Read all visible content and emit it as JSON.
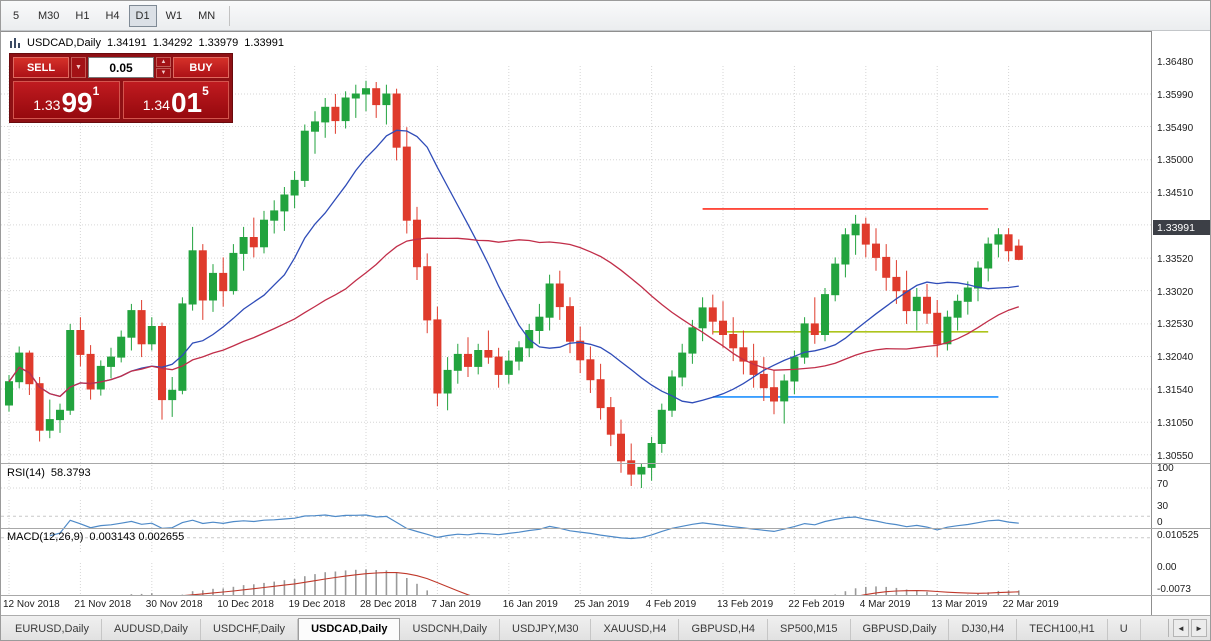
{
  "toolbar": {
    "timeframes": [
      "5",
      "M30",
      "H1",
      "H4",
      "D1",
      "W1",
      "MN"
    ],
    "active": "D1"
  },
  "chart_header": {
    "symbol_label": "USDCAD,Daily",
    "open": "1.34191",
    "high": "1.34292",
    "low": "1.33979",
    "close": "1.33991"
  },
  "trade": {
    "sell_label": "SELL",
    "buy_label": "BUY",
    "volume": "0.05",
    "bid": {
      "prefix": "1.33",
      "pips": "99",
      "pipette": "1"
    },
    "ask": {
      "prefix": "1.34",
      "pips": "01",
      "pipette": "5"
    }
  },
  "icons": {
    "dropdown": "▼",
    "spin_up": "▲",
    "spin_down": "▼",
    "scroll_left": "◄",
    "scroll_right": "►"
  },
  "indicators": {
    "rsi_label": "RSI(14)",
    "rsi_value": "58.3793",
    "macd_label": "MACD(12,26,9)",
    "macd_values": "0.003143 0.002655"
  },
  "tabs": [
    {
      "label": "EURUSD,Daily",
      "active": false
    },
    {
      "label": "AUDUSD,Daily",
      "active": false
    },
    {
      "label": "USDCHF,Daily",
      "active": false
    },
    {
      "label": "USDCAD,Daily",
      "active": true
    },
    {
      "label": "USDCNH,Daily",
      "active": false
    },
    {
      "label": "USDJPY,M30",
      "active": false
    },
    {
      "label": "XAUUSD,H4",
      "active": false
    },
    {
      "label": "GBPUSD,H4",
      "active": false
    },
    {
      "label": "SP500,M15",
      "active": false
    },
    {
      "label": "GBPUSD,Daily",
      "active": false
    },
    {
      "label": "DJ30,H4",
      "active": false
    },
    {
      "label": "TECH100,H1",
      "active": false
    },
    {
      "label": "U",
      "active": false
    }
  ],
  "chart_data": {
    "type": "candlestick",
    "symbol": "USDCAD",
    "timeframe": "Daily",
    "current_price": "1.33991",
    "up_color": "#22A33E",
    "down_color": "#DF3B2C",
    "price_axis_labels": [
      "1.36480",
      "1.35990",
      "1.35490",
      "1.35000",
      "1.34510",
      "1.34010",
      "1.33520",
      "1.33020",
      "1.32530",
      "1.32040",
      "1.31540",
      "1.31050",
      "1.30550"
    ],
    "date_labels": [
      "12 Nov 2018",
      "21 Nov 2018",
      "30 Nov 2018",
      "10 Dec 2018",
      "19 Dec 2018",
      "28 Dec 2018",
      "7 Jan 2019",
      "16 Jan 2019",
      "25 Jan 2019",
      "4 Feb 2019",
      "13 Feb 2019",
      "22 Feb 2019",
      "4 Mar 2019",
      "13 Mar 2019",
      "22 Mar 2019"
    ],
    "date_label_indices": [
      0,
      7,
      14,
      21,
      28,
      35,
      42,
      49,
      56,
      63,
      70,
      77,
      84,
      91,
      98
    ],
    "ma_fast": {
      "period": 13,
      "color": "#2F4CB8"
    },
    "ma_slow": {
      "period": 34,
      "color": "#C12E49"
    },
    "trend_lines": [
      {
        "name": "resistance",
        "price": 1.3475,
        "from": 68,
        "to": 96,
        "color": "#FF2E1E"
      },
      {
        "name": "support-mid",
        "price": 1.329,
        "from": 69,
        "to": 96,
        "color": "#ADC41C"
      },
      {
        "name": "support-low",
        "price": 1.3192,
        "from": 69,
        "to": 97,
        "color": "#1E90FF"
      }
    ],
    "rsi": {
      "period": 14,
      "value_text": "58.3793",
      "levels": [
        100,
        70,
        30,
        0
      ],
      "level_labels": [
        "100",
        "70",
        "30",
        "0"
      ],
      "color": "#4E8AC8"
    },
    "macd": {
      "axis_labels": [
        "0.010525",
        "0.00",
        "-0.0073"
      ],
      "axis_values": [
        0.010525,
        0,
        -0.0073
      ],
      "histogram_color": "#9a9a9a",
      "signal_color": "#C0392B"
    },
    "candles": [
      [
        1.318,
        1.3225,
        1.317,
        1.3215
      ],
      [
        1.3215,
        1.3268,
        1.3205,
        1.3258
      ],
      [
        1.3258,
        1.3262,
        1.3195,
        1.3212
      ],
      [
        1.3212,
        1.3222,
        1.3125,
        1.3142
      ],
      [
        1.3142,
        1.3188,
        1.313,
        1.3158
      ],
      [
        1.3158,
        1.3182,
        1.3138,
        1.3172
      ],
      [
        1.3172,
        1.3302,
        1.3165,
        1.3292
      ],
      [
        1.3292,
        1.3312,
        1.3238,
        1.3256
      ],
      [
        1.3256,
        1.327,
        1.3188,
        1.3204
      ],
      [
        1.3204,
        1.3247,
        1.3194,
        1.3238
      ],
      [
        1.3238,
        1.3266,
        1.322,
        1.3252
      ],
      [
        1.3252,
        1.3292,
        1.3244,
        1.3282
      ],
      [
        1.3282,
        1.3332,
        1.3262,
        1.3322
      ],
      [
        1.3322,
        1.3338,
        1.3252,
        1.3272
      ],
      [
        1.3272,
        1.3312,
        1.3262,
        1.3298
      ],
      [
        1.3298,
        1.3304,
        1.3158,
        1.3188
      ],
      [
        1.3188,
        1.3222,
        1.3162,
        1.3202
      ],
      [
        1.3202,
        1.3342,
        1.3196,
        1.3332
      ],
      [
        1.3332,
        1.3448,
        1.3322,
        1.3412
      ],
      [
        1.3412,
        1.3422,
        1.3308,
        1.3338
      ],
      [
        1.3338,
        1.3392,
        1.332,
        1.3378
      ],
      [
        1.3378,
        1.3402,
        1.3328,
        1.3352
      ],
      [
        1.3352,
        1.3422,
        1.3346,
        1.3408
      ],
      [
        1.3408,
        1.3448,
        1.3382,
        1.3432
      ],
      [
        1.3432,
        1.3462,
        1.3402,
        1.3418
      ],
      [
        1.3418,
        1.3472,
        1.3408,
        1.3458
      ],
      [
        1.3458,
        1.3488,
        1.3438,
        1.3472
      ],
      [
        1.3472,
        1.3508,
        1.3442,
        1.3496
      ],
      [
        1.3496,
        1.3532,
        1.3476,
        1.3518
      ],
      [
        1.3518,
        1.3602,
        1.3508,
        1.3592
      ],
      [
        1.3592,
        1.3622,
        1.3558,
        1.3606
      ],
      [
        1.3606,
        1.3642,
        1.3582,
        1.3628
      ],
      [
        1.3628,
        1.3648,
        1.3588,
        1.3608
      ],
      [
        1.3608,
        1.3652,
        1.3596,
        1.3642
      ],
      [
        1.3642,
        1.3662,
        1.3612,
        1.3648
      ],
      [
        1.3648,
        1.3668,
        1.3622,
        1.3656
      ],
      [
        1.3656,
        1.3666,
        1.3612,
        1.3632
      ],
      [
        1.3632,
        1.3662,
        1.3602,
        1.3648
      ],
      [
        1.3648,
        1.3656,
        1.3548,
        1.3568
      ],
      [
        1.3568,
        1.3598,
        1.3438,
        1.3458
      ],
      [
        1.3458,
        1.3478,
        1.3368,
        1.3388
      ],
      [
        1.3388,
        1.3408,
        1.3288,
        1.3308
      ],
      [
        1.3308,
        1.3328,
        1.3178,
        1.3198
      ],
      [
        1.3198,
        1.3252,
        1.3172,
        1.3232
      ],
      [
        1.3232,
        1.3272,
        1.3212,
        1.3256
      ],
      [
        1.3256,
        1.3282,
        1.3222,
        1.3238
      ],
      [
        1.3238,
        1.3272,
        1.3226,
        1.3262
      ],
      [
        1.3262,
        1.3292,
        1.3242,
        1.3252
      ],
      [
        1.3252,
        1.3266,
        1.3206,
        1.3226
      ],
      [
        1.3226,
        1.3262,
        1.3212,
        1.3246
      ],
      [
        1.3246,
        1.3276,
        1.3232,
        1.3266
      ],
      [
        1.3266,
        1.3302,
        1.3252,
        1.3292
      ],
      [
        1.3292,
        1.3332,
        1.3272,
        1.3312
      ],
      [
        1.3312,
        1.3376,
        1.3292,
        1.3362
      ],
      [
        1.3362,
        1.3382,
        1.3308,
        1.3328
      ],
      [
        1.3328,
        1.3342,
        1.3258,
        1.3276
      ],
      [
        1.3276,
        1.3298,
        1.3228,
        1.3248
      ],
      [
        1.3248,
        1.3268,
        1.3198,
        1.3218
      ],
      [
        1.3218,
        1.3242,
        1.3158,
        1.3176
      ],
      [
        1.3176,
        1.3192,
        1.3118,
        1.3136
      ],
      [
        1.3136,
        1.3158,
        1.3078,
        1.3096
      ],
      [
        1.3096,
        1.3122,
        1.3058,
        1.3076
      ],
      [
        1.3076,
        1.3092,
        1.3055,
        1.3086
      ],
      [
        1.3086,
        1.3132,
        1.3066,
        1.3122
      ],
      [
        1.3122,
        1.3182,
        1.3108,
        1.3172
      ],
      [
        1.3172,
        1.3232,
        1.3162,
        1.3222
      ],
      [
        1.3222,
        1.3272,
        1.3208,
        1.3258
      ],
      [
        1.3258,
        1.3308,
        1.3242,
        1.3296
      ],
      [
        1.3296,
        1.3342,
        1.3276,
        1.3326
      ],
      [
        1.3326,
        1.3346,
        1.3286,
        1.3306
      ],
      [
        1.3306,
        1.3336,
        1.3266,
        1.3286
      ],
      [
        1.3286,
        1.3312,
        1.3246,
        1.3266
      ],
      [
        1.3266,
        1.3292,
        1.3226,
        1.3246
      ],
      [
        1.3246,
        1.3272,
        1.3206,
        1.3226
      ],
      [
        1.3226,
        1.3252,
        1.3186,
        1.3206
      ],
      [
        1.3206,
        1.3232,
        1.3166,
        1.3186
      ],
      [
        1.3186,
        1.3226,
        1.3152,
        1.3216
      ],
      [
        1.3216,
        1.3262,
        1.3196,
        1.3252
      ],
      [
        1.3252,
        1.3312,
        1.3242,
        1.3302
      ],
      [
        1.3302,
        1.3342,
        1.3272,
        1.3286
      ],
      [
        1.3286,
        1.3356,
        1.3276,
        1.3346
      ],
      [
        1.3346,
        1.3402,
        1.3336,
        1.3392
      ],
      [
        1.3392,
        1.3446,
        1.3372,
        1.3436
      ],
      [
        1.3436,
        1.3466,
        1.3406,
        1.3452
      ],
      [
        1.3452,
        1.3462,
        1.3402,
        1.3422
      ],
      [
        1.3422,
        1.3446,
        1.3382,
        1.3402
      ],
      [
        1.3402,
        1.3422,
        1.3352,
        1.3372
      ],
      [
        1.3372,
        1.3398,
        1.3332,
        1.3352
      ],
      [
        1.3352,
        1.3382,
        1.3302,
        1.3322
      ],
      [
        1.3322,
        1.3356,
        1.3292,
        1.3342
      ],
      [
        1.3342,
        1.3362,
        1.3302,
        1.3318
      ],
      [
        1.3318,
        1.3338,
        1.3252,
        1.3272
      ],
      [
        1.3272,
        1.3322,
        1.3262,
        1.3312
      ],
      [
        1.3312,
        1.3346,
        1.3292,
        1.3336
      ],
      [
        1.3336,
        1.3366,
        1.3316,
        1.3356
      ],
      [
        1.3356,
        1.3396,
        1.3336,
        1.3386
      ],
      [
        1.3386,
        1.3432,
        1.3366,
        1.3422
      ],
      [
        1.3422,
        1.3446,
        1.3402,
        1.3436
      ],
      [
        1.3436,
        1.3446,
        1.3396,
        1.3412
      ],
      [
        1.34191,
        1.34292,
        1.33979,
        1.33991
      ]
    ]
  }
}
